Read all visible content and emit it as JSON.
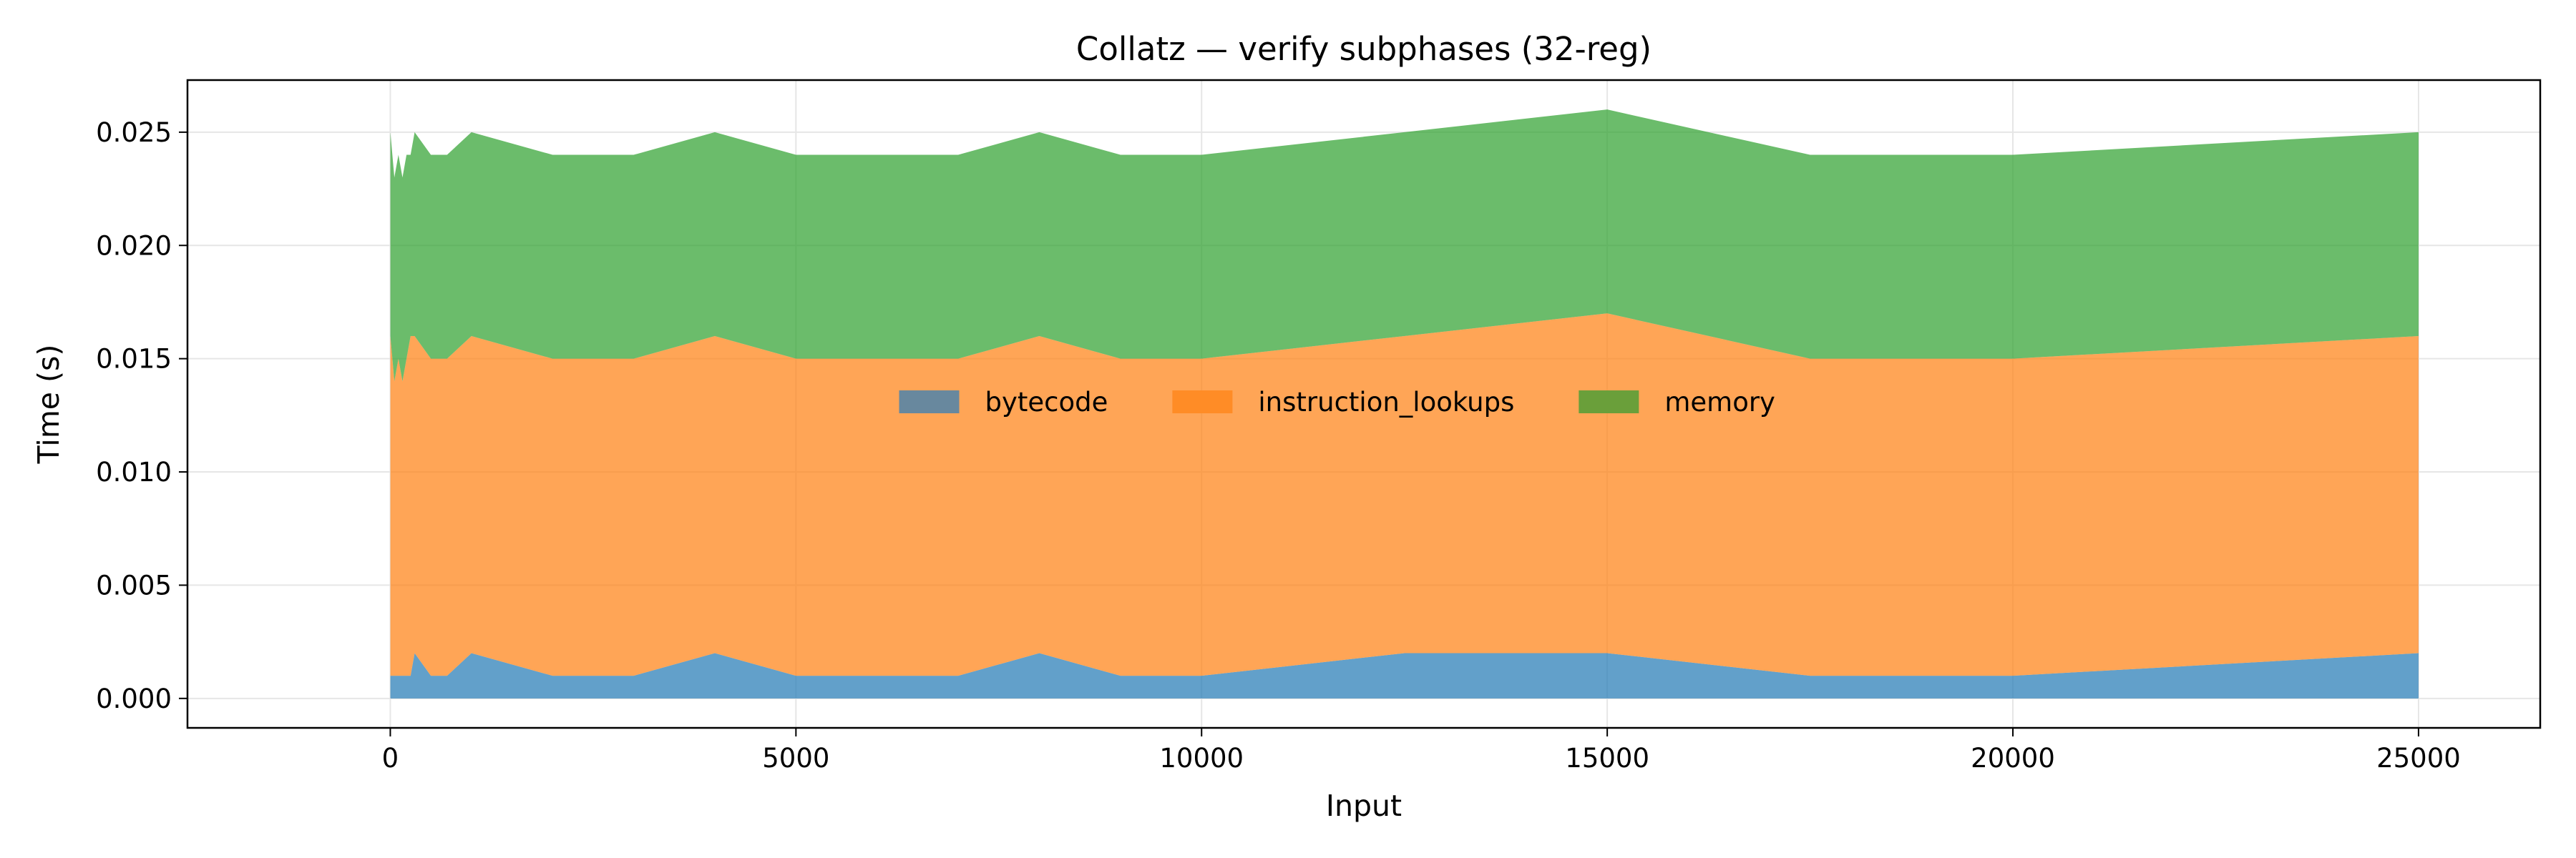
{
  "chart_data": {
    "type": "area",
    "stacked": true,
    "title": "Collatz — verify subphases (32-reg)",
    "xlabel": "Input",
    "ylabel": "Time (s)",
    "xlim": [
      -2500,
      26500
    ],
    "ylim": [
      -0.0013,
      0.0273
    ],
    "xticks": [
      0,
      5000,
      10000,
      15000,
      20000,
      25000
    ],
    "xtick_labels": [
      "0",
      "5000",
      "10000",
      "15000",
      "20000",
      "25000"
    ],
    "yticks": [
      0.0,
      0.005,
      0.01,
      0.015,
      0.02,
      0.025
    ],
    "ytick_labels": [
      "0.000",
      "0.005",
      "0.010",
      "0.015",
      "0.020",
      "0.025"
    ],
    "grid": true,
    "legend": {
      "placement": "center",
      "columns": 3
    },
    "x": [
      1,
      50,
      100,
      150,
      200,
      250,
      300,
      500,
      700,
      1000,
      2000,
      3000,
      4000,
      5000,
      6000,
      7000,
      8000,
      9000,
      10000,
      12500,
      15000,
      17500,
      20000,
      25000
    ],
    "series": [
      {
        "name": "bytecode",
        "color": "#1f77b4",
        "legend_color": "#68889e",
        "values": [
          0.001,
          0.001,
          0.001,
          0.001,
          0.001,
          0.001,
          0.002,
          0.001,
          0.001,
          0.002,
          0.001,
          0.001,
          0.002,
          0.001,
          0.001,
          0.001,
          0.002,
          0.001,
          0.001,
          0.002,
          0.002,
          0.001,
          0.001,
          0.002
        ]
      },
      {
        "name": "instruction_lookups",
        "color": "#ff7f0e",
        "legend_color": "#ff8c26",
        "values": [
          0.015,
          0.013,
          0.014,
          0.013,
          0.014,
          0.015,
          0.014,
          0.014,
          0.014,
          0.014,
          0.014,
          0.014,
          0.014,
          0.014,
          0.014,
          0.014,
          0.014,
          0.014,
          0.014,
          0.014,
          0.015,
          0.014,
          0.014,
          0.014
        ]
      },
      {
        "name": "memory",
        "color": "#2ca02c",
        "legend_color": "#6a9f3a",
        "values": [
          0.009,
          0.009,
          0.009,
          0.009,
          0.009,
          0.008,
          0.009,
          0.009,
          0.009,
          0.009,
          0.009,
          0.009,
          0.009,
          0.009,
          0.009,
          0.009,
          0.009,
          0.009,
          0.009,
          0.009,
          0.009,
          0.009,
          0.009,
          0.009
        ]
      }
    ]
  }
}
